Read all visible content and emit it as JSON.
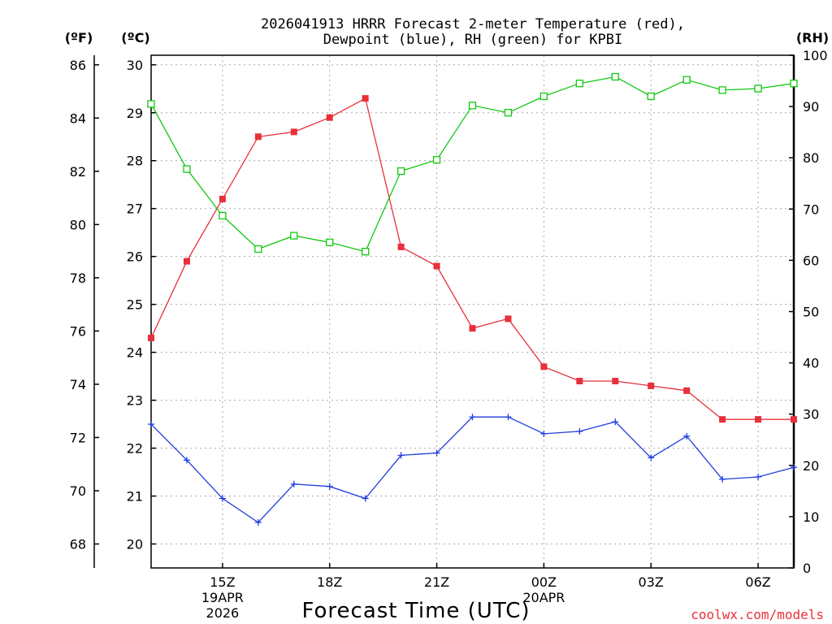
{
  "chart_data": {
    "type": "line",
    "title": [
      "2026041913 HRRR Forecast 2-meter Temperature (red),",
      "Dewpoint (blue), RH (green) for KPBI"
    ],
    "xlabel": "Forecast Time (UTC)",
    "credit": "coolwx.com/models",
    "units": {
      "fahrenheit": "(ºF)",
      "celsius": "(ºC)",
      "rh": "(RH)"
    },
    "x": [
      13,
      14,
      15,
      16,
      17,
      18,
      19,
      20,
      21,
      22,
      23,
      24,
      25,
      26,
      27,
      28,
      29,
      30,
      31
    ],
    "x_ticks": [
      {
        "x": 15,
        "lines": [
          "15Z",
          "19APR",
          "2026"
        ]
      },
      {
        "x": 18,
        "lines": [
          "18Z"
        ]
      },
      {
        "x": 21,
        "lines": [
          "21Z"
        ]
      },
      {
        "x": 24,
        "lines": [
          "00Z",
          "20APR"
        ]
      },
      {
        "x": 27,
        "lines": [
          "03Z"
        ]
      },
      {
        "x": 30,
        "lines": [
          "06Z"
        ]
      }
    ],
    "xlim": [
      13,
      31
    ],
    "y_celsius": {
      "range": [
        19.5,
        30.2
      ],
      "ticks": [
        20,
        21,
        22,
        23,
        24,
        25,
        26,
        27,
        28,
        29,
        30
      ]
    },
    "y_fahrenheit": {
      "ticks": [
        68,
        70,
        72,
        74,
        76,
        78,
        80,
        82,
        84,
        86
      ]
    },
    "y_rh": {
      "range": [
        0,
        100
      ],
      "ticks": [
        0,
        10,
        20,
        30,
        40,
        50,
        60,
        70,
        80,
        90,
        100
      ]
    },
    "grid": true,
    "series": [
      {
        "name": "Temperature",
        "unit": "C",
        "color": "#e8303a",
        "marker": "filled-square",
        "values": [
          24.3,
          25.9,
          27.2,
          28.5,
          28.6,
          28.9,
          29.3,
          26.2,
          25.8,
          24.5,
          24.7,
          23.7,
          23.4,
          23.4,
          23.3,
          23.2,
          22.6,
          22.6,
          22.6
        ]
      },
      {
        "name": "Dewpoint",
        "unit": "C",
        "color": "#1f3de0",
        "marker": "plus",
        "values": [
          22.5,
          21.75,
          20.95,
          20.45,
          21.25,
          21.2,
          20.95,
          21.85,
          21.9,
          22.65,
          22.65,
          22.3,
          22.35,
          22.55,
          21.8,
          22.25,
          21.35,
          21.4,
          21.6
        ]
      },
      {
        "name": "RH",
        "unit": "%",
        "color": "#11c911",
        "marker": "open-square",
        "values": [
          90.5,
          77.8,
          68.7,
          62.2,
          64.8,
          63.5,
          61.7,
          77.4,
          79.6,
          90.2,
          88.8,
          92.0,
          94.5,
          95.8,
          92.0,
          95.2,
          93.2,
          93.5,
          94.5
        ]
      }
    ]
  }
}
